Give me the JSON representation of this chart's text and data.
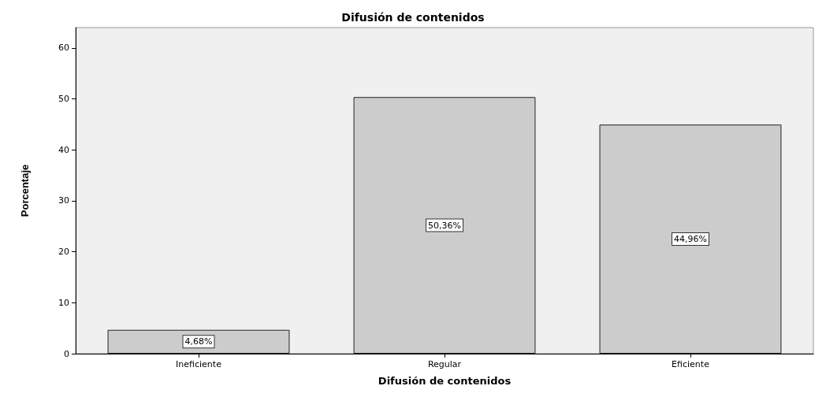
{
  "chart_data": {
    "type": "bar",
    "title": "Difusión de contenidos",
    "xlabel": "Difusión de contenidos",
    "ylabel": "Porcentaje",
    "categories": [
      "Ineficiente",
      "Regular",
      "Eficiente"
    ],
    "values": [
      4.68,
      50.36,
      44.96
    ],
    "value_labels": [
      "4,68%",
      "50,36%",
      "44,96%"
    ],
    "color": "#cccccc",
    "ylim": [
      0,
      64
    ],
    "yticks": [
      0,
      10,
      20,
      30,
      40,
      50,
      60
    ],
    "grid": false
  }
}
